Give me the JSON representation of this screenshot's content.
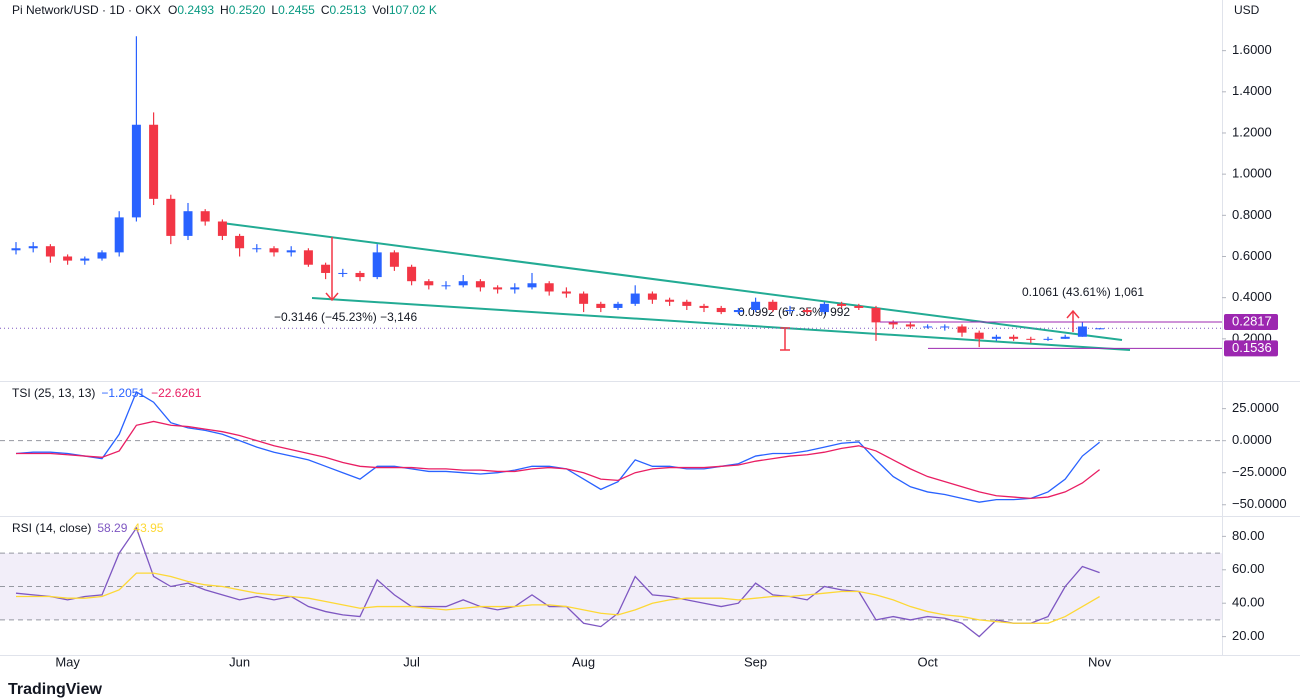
{
  "header": {
    "symbol": "Pi Network/USD · 1D · OKX",
    "ohlc": [
      {
        "label": "O",
        "value": "0.2493"
      },
      {
        "label": "H",
        "value": "0.2520"
      },
      {
        "label": "L",
        "value": "0.2455"
      },
      {
        "label": "C",
        "value": "0.2513"
      },
      {
        "label": "Vol",
        "value": "107.02 K"
      }
    ]
  },
  "currency": "USD",
  "logo": "TradingView",
  "chart_data": [
    {
      "type": "candlestick",
      "categories": [
        null,
        null,
        null,
        "May",
        null,
        null,
        null,
        null,
        null,
        null,
        null,
        null,
        null,
        "Jun",
        null,
        null,
        null,
        null,
        null,
        null,
        null,
        null,
        null,
        "Jul",
        null,
        null,
        null,
        null,
        null,
        null,
        null,
        null,
        null,
        "Aug",
        null,
        null,
        null,
        null,
        null,
        null,
        null,
        null,
        null,
        "Sep",
        null,
        null,
        null,
        null,
        null,
        null,
        null,
        null,
        null,
        "Oct",
        null,
        null,
        null,
        null,
        null,
        null,
        null,
        null,
        null,
        "Nov"
      ],
      "open": [
        0.63,
        0.64,
        0.65,
        0.6,
        0.58,
        0.59,
        0.62,
        0.79,
        1.24,
        0.88,
        0.7,
        0.82,
        0.77,
        0.7,
        0.64,
        0.64,
        0.62,
        0.63,
        0.56,
        0.52,
        0.52,
        0.5,
        0.62,
        0.55,
        0.48,
        0.46,
        0.46,
        0.48,
        0.45,
        0.44,
        0.45,
        0.47,
        0.43,
        0.42,
        0.37,
        0.35,
        0.37,
        0.42,
        0.39,
        0.38,
        0.36,
        0.35,
        0.33,
        0.34,
        0.38,
        0.34,
        0.34,
        0.33,
        0.37,
        0.36,
        0.35,
        0.28,
        0.27,
        0.26,
        0.26,
        0.26,
        0.23,
        0.2,
        0.21,
        0.2,
        0.195,
        0.2,
        0.21,
        0.2493
      ],
      "high": [
        0.67,
        0.67,
        0.66,
        0.61,
        0.6,
        0.63,
        0.82,
        1.67,
        1.3,
        0.9,
        0.86,
        0.83,
        0.78,
        0.71,
        0.66,
        0.65,
        0.65,
        0.64,
        0.57,
        0.54,
        0.53,
        0.66,
        0.63,
        0.56,
        0.49,
        0.48,
        0.51,
        0.49,
        0.46,
        0.47,
        0.52,
        0.48,
        0.45,
        0.43,
        0.38,
        0.38,
        0.46,
        0.43,
        0.4,
        0.39,
        0.37,
        0.36,
        0.35,
        0.4,
        0.39,
        0.36,
        0.35,
        0.38,
        0.38,
        0.37,
        0.36,
        0.29,
        0.28,
        0.27,
        0.27,
        0.27,
        0.24,
        0.22,
        0.22,
        0.21,
        0.21,
        0.22,
        0.28,
        0.252
      ],
      "low": [
        0.61,
        0.62,
        0.57,
        0.56,
        0.56,
        0.58,
        0.6,
        0.77,
        0.85,
        0.66,
        0.68,
        0.75,
        0.68,
        0.6,
        0.62,
        0.6,
        0.6,
        0.55,
        0.49,
        0.5,
        0.48,
        0.49,
        0.53,
        0.46,
        0.44,
        0.44,
        0.45,
        0.43,
        0.42,
        0.42,
        0.44,
        0.41,
        0.4,
        0.33,
        0.33,
        0.34,
        0.36,
        0.37,
        0.36,
        0.34,
        0.33,
        0.32,
        0.32,
        0.33,
        0.33,
        0.32,
        0.32,
        0.32,
        0.35,
        0.34,
        0.19,
        0.25,
        0.25,
        0.25,
        0.24,
        0.21,
        0.16,
        0.19,
        0.19,
        0.18,
        0.19,
        0.2,
        0.21,
        0.2455
      ],
      "close": [
        0.64,
        0.65,
        0.6,
        0.58,
        0.59,
        0.62,
        0.79,
        1.24,
        0.88,
        0.7,
        0.82,
        0.77,
        0.7,
        0.64,
        0.64,
        0.62,
        0.63,
        0.56,
        0.52,
        0.52,
        0.5,
        0.62,
        0.55,
        0.48,
        0.46,
        0.46,
        0.48,
        0.45,
        0.44,
        0.45,
        0.47,
        0.43,
        0.42,
        0.37,
        0.35,
        0.37,
        0.42,
        0.39,
        0.38,
        0.36,
        0.35,
        0.33,
        0.34,
        0.38,
        0.34,
        0.34,
        0.33,
        0.37,
        0.36,
        0.35,
        0.28,
        0.27,
        0.26,
        0.26,
        0.26,
        0.23,
        0.2,
        0.21,
        0.2,
        0.195,
        0.2,
        0.21,
        0.26,
        0.2513
      ],
      "up_color": "#2962ff",
      "down_color": "#f23645",
      "ylim": [
        0,
        1.846
      ],
      "yticks": [
        {
          "value": 0.2,
          "label": "0.2000"
        },
        {
          "value": 0.4,
          "label": "0.4000"
        },
        {
          "value": 0.6,
          "label": "0.6000"
        },
        {
          "value": 0.8,
          "label": "0.8000"
        },
        {
          "value": 1.0,
          "label": "1.0000"
        },
        {
          "value": 1.2,
          "label": "1.2000"
        },
        {
          "value": 1.4,
          "label": "1.4000"
        },
        {
          "value": 1.6,
          "label": "1.6000"
        }
      ],
      "levels": [
        0.2817,
        0.1536
      ],
      "level_color": "#9c27b0",
      "annotations": [
        "−0.3146 (−45.23%) −3,146",
        "0.0992 (67.35%) 992",
        "0.1061 (43.61%) 1,061"
      ]
    },
    {
      "type": "line",
      "title": "TSI (25, 13, 13)",
      "last_labels": [
        "−1.2051",
        "−22.6261"
      ],
      "series": [
        {
          "color": "#2962ff",
          "values": [
            -10,
            -9,
            -9,
            -10,
            -12,
            -14,
            5,
            38,
            30,
            14,
            10,
            8,
            5,
            0,
            -5,
            -9,
            -12,
            -15,
            -20,
            -25,
            -30,
            -20,
            -20,
            -22,
            -24,
            -24,
            -25,
            -26,
            -25,
            -23,
            -20,
            -20,
            -22,
            -30,
            -38,
            -32,
            -15,
            -20,
            -20,
            -22,
            -22,
            -20,
            -18,
            -12,
            -10,
            -10,
            -8,
            -5,
            -2,
            -1,
            -15,
            -28,
            -36,
            -40,
            -42,
            -45,
            -48,
            -46,
            -46,
            -45,
            -40,
            -30,
            -12,
            -1.2051
          ]
        },
        {
          "color": "#e91e63",
          "values": [
            -10,
            -10,
            -10,
            -11,
            -12,
            -13,
            -8,
            12,
            15,
            12,
            11,
            9,
            7,
            4,
            0,
            -4,
            -7,
            -10,
            -13,
            -17,
            -20,
            -21,
            -21,
            -21,
            -22,
            -22,
            -23,
            -23,
            -24,
            -24,
            -22,
            -21,
            -22,
            -25,
            -30,
            -31,
            -25,
            -22,
            -21,
            -21,
            -21,
            -20,
            -19,
            -16,
            -14,
            -12,
            -11,
            -9,
            -6,
            -4,
            -8,
            -15,
            -22,
            -28,
            -32,
            -36,
            -40,
            -43,
            -44,
            -45,
            -44,
            -40,
            -33,
            -22.6261
          ]
        }
      ],
      "ylim": [
        -58,
        45
      ],
      "yticks": [
        {
          "value": 25,
          "label": "25.0000"
        },
        {
          "value": 0,
          "label": "0.0000"
        },
        {
          "value": -25,
          "label": "−25.0000"
        },
        {
          "value": -50,
          "label": "−50.0000"
        }
      ],
      "reference_lines": [
        0
      ]
    },
    {
      "type": "line",
      "title": "RSI (14, close)",
      "last_labels": [
        "58.29",
        "43.95"
      ],
      "series": [
        {
          "color": "#7e57c2",
          "values": [
            46,
            45,
            44,
            42,
            44,
            45,
            70,
            85,
            56,
            50,
            52,
            48,
            45,
            42,
            44,
            42,
            44,
            38,
            35,
            33,
            32,
            54,
            45,
            38,
            38,
            38,
            42,
            38,
            36,
            38,
            45,
            38,
            38,
            28,
            26,
            34,
            56,
            45,
            44,
            42,
            40,
            38,
            40,
            52,
            45,
            44,
            42,
            50,
            48,
            47,
            30,
            32,
            30,
            32,
            31,
            28,
            20,
            30,
            28,
            28,
            32,
            50,
            62,
            58.29
          ]
        },
        {
          "color": "#fdd835",
          "values": [
            44,
            44,
            44,
            43,
            43,
            44,
            48,
            58,
            58,
            56,
            53,
            51,
            50,
            48,
            46,
            45,
            44,
            43,
            41,
            39,
            37,
            38,
            38,
            38,
            37,
            36,
            37,
            38,
            38,
            38,
            39,
            39,
            38,
            36,
            34,
            33,
            36,
            40,
            42,
            43,
            43,
            43,
            42,
            43,
            44,
            44,
            45,
            46,
            47,
            47,
            45,
            42,
            38,
            35,
            33,
            32,
            30,
            29,
            28,
            28,
            28,
            32,
            38,
            43.95
          ]
        }
      ],
      "ylim": [
        9,
        91
      ],
      "yticks": [
        {
          "value": 80,
          "label": "80.00"
        },
        {
          "value": 60,
          "label": "60.00"
        },
        {
          "value": 40,
          "label": "40.00"
        },
        {
          "value": 20,
          "label": "20.00"
        }
      ],
      "band": [
        30,
        70
      ],
      "reference_lines": [
        50
      ]
    }
  ]
}
